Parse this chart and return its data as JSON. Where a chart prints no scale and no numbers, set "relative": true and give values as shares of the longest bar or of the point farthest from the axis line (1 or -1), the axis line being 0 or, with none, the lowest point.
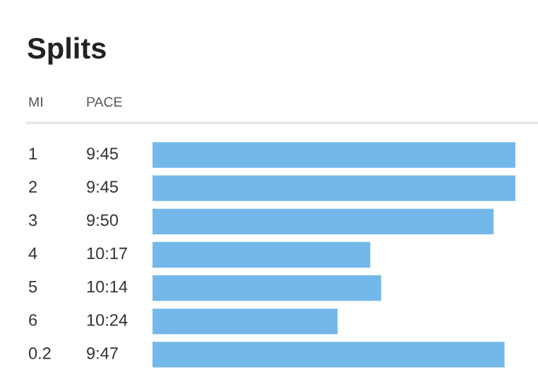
{
  "chart_data": {
    "type": "bar",
    "orientation": "horizontal",
    "relative": true,
    "title": "Splits",
    "annotations": [
      "MI",
      "PACE",
      "9:45",
      "9:45",
      "9:50",
      "10:17",
      "10:14",
      "10:24",
      "9:47"
    ],
    "categories": [
      "1",
      "2",
      "3",
      "4",
      "5",
      "6",
      "0.2"
    ],
    "values": [
      1,
      1,
      0.94,
      0.6,
      0.63,
      0.51,
      0.97
    ],
    "color": "#74b8ea"
  }
}
